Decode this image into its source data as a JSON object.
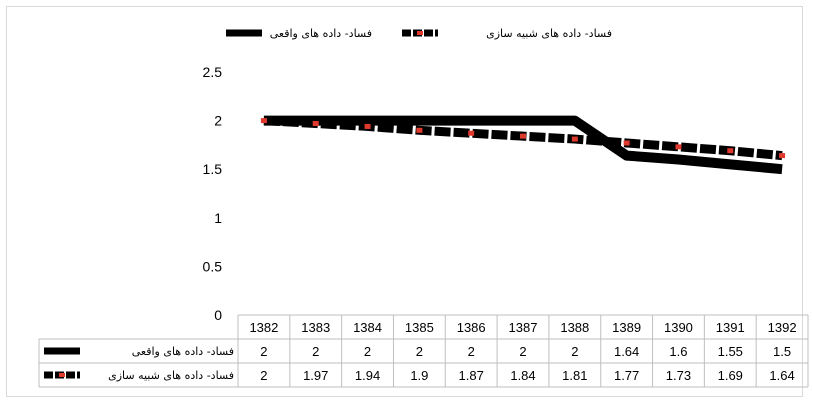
{
  "chart_data": {
    "type": "line",
    "categories": [
      "1382",
      "1383",
      "1384",
      "1385",
      "1386",
      "1387",
      "1388",
      "1389",
      "1390",
      "1391",
      "1392"
    ],
    "series": [
      {
        "name": "فساد- داده های واقعی",
        "values": [
          2,
          2,
          2,
          2,
          2,
          2,
          2,
          1.64,
          1.6,
          1.55,
          1.5
        ],
        "color": "#000000",
        "style": "solid"
      },
      {
        "name": "فساد- داده های شبیه سازی",
        "values": [
          2,
          1.97,
          1.94,
          1.9,
          1.87,
          1.84,
          1.81,
          1.77,
          1.73,
          1.69,
          1.64
        ],
        "color": "#000000",
        "marker_color": "#e03a2f",
        "style": "dashed"
      }
    ],
    "y_ticks": [
      "0",
      "0.5",
      "1",
      "1.5",
      "2",
      "2.5"
    ],
    "ylim": [
      0,
      2.5
    ],
    "grid": false,
    "legend_position": "top",
    "data_table": true,
    "table_rows": [
      {
        "label": "فساد- داده های واقعی",
        "cells": [
          "2",
          "2",
          "2",
          "2",
          "2",
          "2",
          "2",
          "1.64",
          "1.6",
          "1.55",
          "1.5"
        ]
      },
      {
        "label": "فساد- داده های شبیه سازی",
        "cells": [
          "2",
          "1.97",
          "1.94",
          "1.9",
          "1.87",
          "1.84",
          "1.81",
          "1.77",
          "1.73",
          "1.69",
          "1.64"
        ]
      }
    ]
  }
}
